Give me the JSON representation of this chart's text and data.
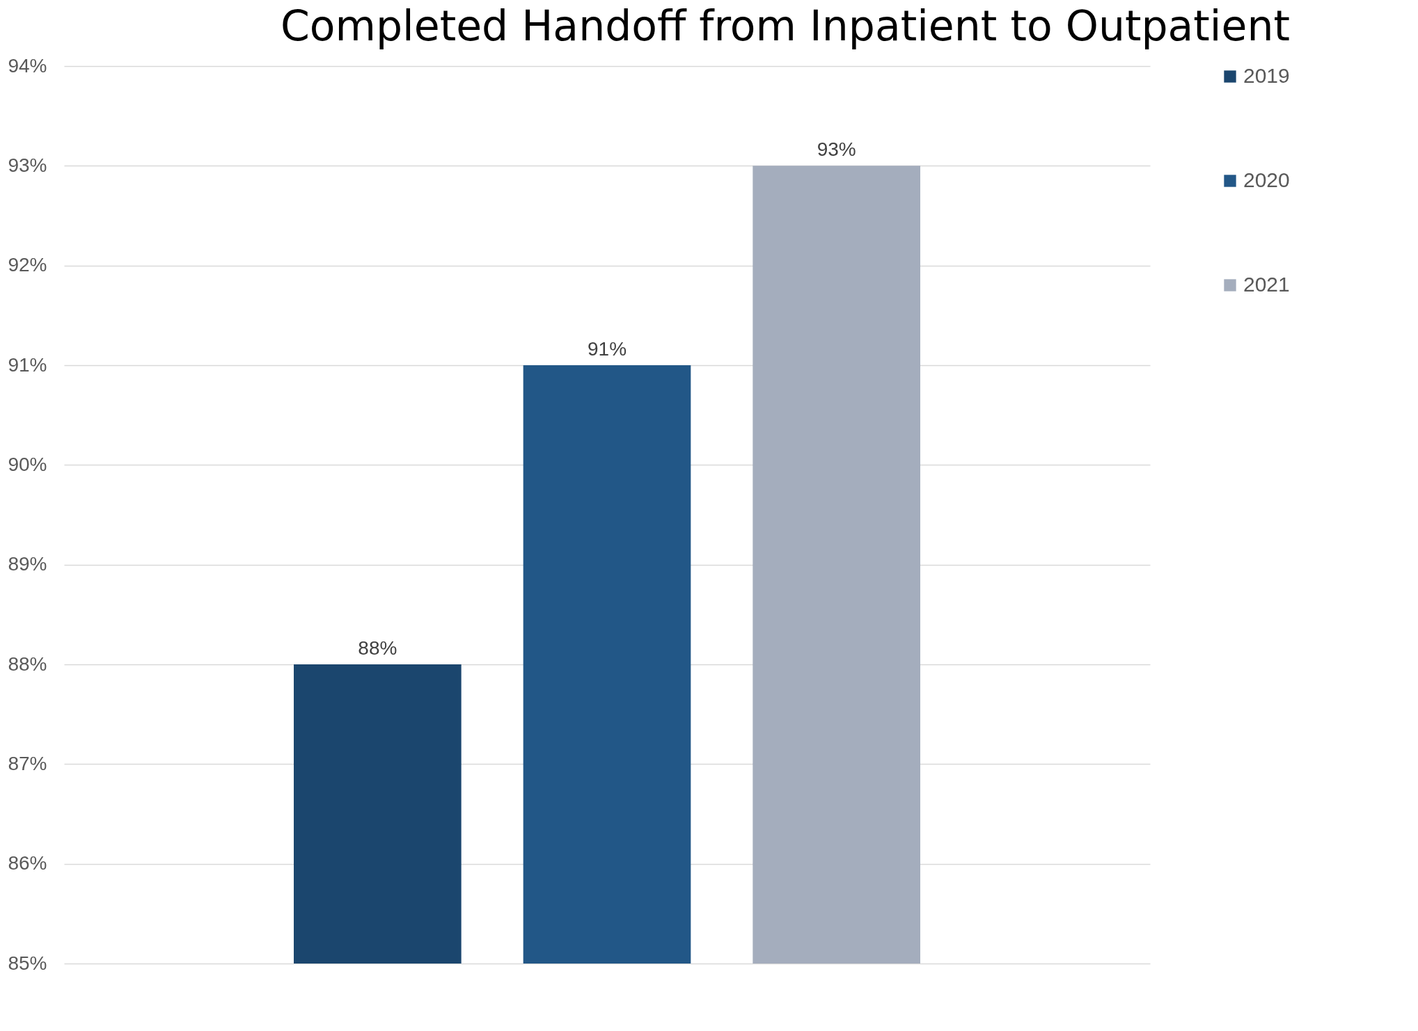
{
  "chart_data": {
    "type": "bar",
    "title": "Completed Handoff from Inpatient to Outpatient",
    "categories": [
      null
    ],
    "series": [
      {
        "name": "2019",
        "color": "#1b466e",
        "values": [
          88
        ],
        "value_labels": [
          "88%"
        ]
      },
      {
        "name": "2020",
        "color": "#225787",
        "values": [
          91
        ],
        "value_labels": [
          "91%"
        ]
      },
      {
        "name": "2021",
        "color": "#a4adbd",
        "values": [
          93
        ],
        "value_labels": [
          "93%"
        ]
      }
    ],
    "ylim": [
      85,
      94
    ],
    "yticks": [
      {
        "value": 85,
        "label": "85%"
      },
      {
        "value": 86,
        "label": "86%"
      },
      {
        "value": 87,
        "label": "87%"
      },
      {
        "value": 88,
        "label": "88%"
      },
      {
        "value": 89,
        "label": "89%"
      },
      {
        "value": 90,
        "label": "90%"
      },
      {
        "value": 91,
        "label": "91%"
      },
      {
        "value": 92,
        "label": "92%"
      },
      {
        "value": 93,
        "label": "93%"
      },
      {
        "value": 94,
        "label": "94%"
      }
    ],
    "grid": "y",
    "legend": "right",
    "tick_labels": "y"
  }
}
